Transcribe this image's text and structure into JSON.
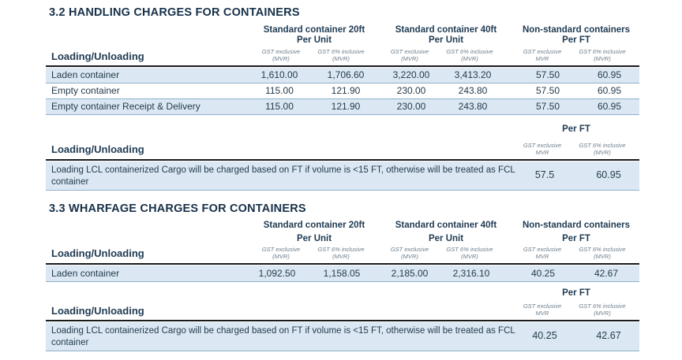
{
  "sections": [
    {
      "title": "3.2 HANDLING CHARGES FOR CONTAINERS",
      "groups": [
        {
          "line1": "Standard container 20ft",
          "line2": "Per Unit"
        },
        {
          "line1": "Standard container 40ft",
          "line2": "Per Unit"
        },
        {
          "line1": "Non-standard containers",
          "line2": "Per FT"
        }
      ],
      "subheaders": [
        "GST exclusive (MVR)",
        "GST 6% inclusive (MVR)",
        "GST exclusive (MVR)",
        "GST 6% inclusive (MVR)",
        "GST exclusive MVR",
        "GST 6% inclusive (MVR)"
      ],
      "row_label_header": "Loading/Unloading",
      "rows": [
        {
          "label": "Laden container",
          "values": [
            "1,610.00",
            "1,706.60",
            "3,220.00",
            "3,413.20",
            "57.50",
            "60.95"
          ]
        },
        {
          "label": "Empty container",
          "values": [
            "115.00",
            "121.90",
            "230.00",
            "243.80",
            "57.50",
            "60.95"
          ]
        },
        {
          "label": "Empty container Receipt & Delivery",
          "values": [
            "115.00",
            "121.90",
            "230.00",
            "243.80",
            "57.50",
            "60.95"
          ]
        }
      ],
      "lcl": {
        "group": "Per FT",
        "subheaders": [
          "GST exclusive MVR",
          "GST 6% inclusive (MVR)"
        ],
        "row_label_header": "Loading/Unloading",
        "text": "Loading LCL containerized Cargo will be charged based on FT if volume is <15 FT, otherwise will be treated as FCL container",
        "values": [
          "57.5",
          "60.95"
        ]
      }
    },
    {
      "title": "3.3 WHARFAGE CHARGES FOR CONTAINERS",
      "groups": [
        {
          "line1": "Standard container 20ft",
          "line2": "Per Unit"
        },
        {
          "line1": "Standard container 40ft",
          "line2": "Per Unit"
        },
        {
          "line1": "Non-standard containers",
          "line2": "Per FT"
        }
      ],
      "subheaders": [
        "GST exclusive (MVR)",
        "GST 6% inclusive (MVR)",
        "GST exclusive (MVR)",
        "GST 6% inclusive (MVR)",
        "GST exclusive MVR",
        "GST 6% inclusive (MVR)"
      ],
      "row_label_header": "Loading/Unloading",
      "rows": [
        {
          "label": "Laden container",
          "values": [
            "1,092.50",
            "1,158.05",
            "2,185.00",
            "2,316.10",
            "40.25",
            "42.67"
          ]
        }
      ],
      "lcl": {
        "group": "Per FT",
        "subheaders": [
          "GST exclusive MVR",
          "GST 6% inclusive (MVR)"
        ],
        "row_label_header": "Loading/Unloading",
        "text": "Loading LCL containerized Cargo will be charged based on FT if volume is <15 FT, otherwise will be treated as FCL container",
        "values": [
          "40.25",
          "42.67"
        ]
      }
    }
  ]
}
